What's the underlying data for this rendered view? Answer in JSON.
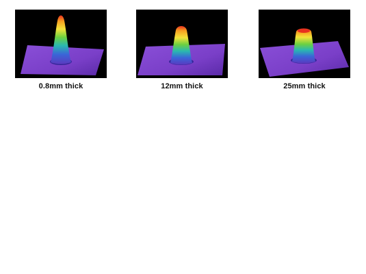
{
  "figure": {
    "background_color": "#000000",
    "panels": [
      {
        "caption": "0.8mm thick",
        "profile": "narrow-peak"
      },
      {
        "caption": "12mm thick",
        "profile": "medium-peak"
      },
      {
        "caption": "25mm thick",
        "profile": "flat-top"
      }
    ]
  }
}
